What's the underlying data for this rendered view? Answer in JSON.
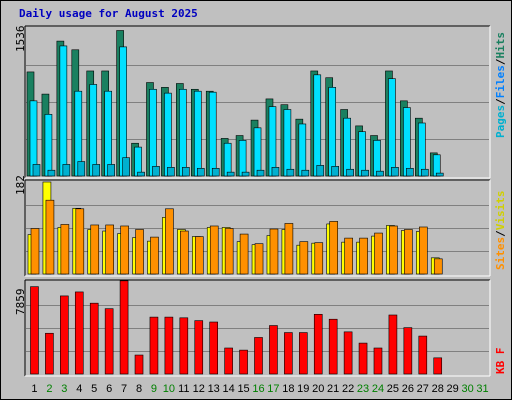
{
  "chart_data": {
    "type": "bar",
    "title": "Daily usage for August 2025",
    "days": [
      "1",
      "2",
      "3",
      "4",
      "5",
      "6",
      "7",
      "8",
      "9",
      "10",
      "11",
      "12",
      "13",
      "14",
      "15",
      "16",
      "17",
      "18",
      "19",
      "20",
      "21",
      "22",
      "23",
      "24",
      "25",
      "26",
      "27",
      "28",
      "29",
      "30",
      "31"
    ],
    "weekend_days": [
      "2",
      "3",
      "9",
      "10",
      "16",
      "17",
      "23",
      "24",
      "30",
      "31"
    ],
    "panels": [
      {
        "id": "hits-files-pages",
        "ymax_label": "1536",
        "ymax": 1536,
        "series": [
          {
            "name": "Hits",
            "color": "#1a8060",
            "values": [
              1080,
              850,
              1400,
              1310,
              1090,
              1090,
              1510,
              340,
              970,
              920,
              960,
              900,
              880,
              390,
              420,
              580,
              800,
              740,
              590,
              1090,
              1020,
              690,
              520,
              420,
              1090,
              780,
              600,
              240,
              0,
              0,
              0
            ]
          },
          {
            "name": "Files",
            "color": "#00e0ff",
            "values": [
              780,
              640,
              1350,
              880,
              950,
              880,
              1340,
              300,
              900,
              860,
              900,
              880,
              870,
              340,
              370,
              500,
              720,
              690,
              540,
              1050,
              920,
              600,
              460,
              370,
              1010,
              710,
              550,
              220,
              0,
              0,
              0
            ]
          },
          {
            "name": "Pages",
            "color": "#00b0d0",
            "values": [
              120,
              60,
              120,
              150,
              120,
              120,
              190,
              40,
              100,
              90,
              90,
              80,
              80,
              40,
              40,
              60,
              90,
              70,
              60,
              110,
              100,
              70,
              60,
              50,
              90,
              80,
              70,
              30,
              0,
              0,
              0
            ]
          }
        ],
        "legend_text": [
          "Pages",
          "/",
          "Files",
          "/",
          "Hits"
        ]
      },
      {
        "id": "visits-sites",
        "ymax_label": "182",
        "ymax": 182,
        "series": [
          {
            "name": "Visits",
            "color": "#ffff00",
            "values": [
              78,
              182,
              92,
              130,
              88,
              85,
              80,
              72,
              65,
              112,
              88,
              74,
              92,
              92,
              64,
              58,
              76,
              88,
              57,
              61,
              99,
              63,
              63,
              75,
              96,
              86,
              84,
              32,
              0,
              0,
              0
            ]
          },
          {
            "name": "Sites",
            "color": "#ff9000",
            "values": [
              90,
              146,
              98,
              129,
              97,
              97,
              95,
              88,
              73,
              129,
              85,
              74,
              95,
              90,
              79,
              60,
              89,
              100,
              64,
              62,
              104,
              71,
              71,
              81,
              95,
              88,
              93,
              30,
              0,
              0,
              0
            ]
          }
        ],
        "legend_text": [
          "Sites",
          "/",
          "Visits"
        ]
      },
      {
        "id": "kbytes",
        "ymax_label": "7859",
        "ymax": 7859,
        "series": [
          {
            "name": "KBytes",
            "color": "#ff0000",
            "values": [
              7460,
              3480,
              6670,
              7010,
              6050,
              5580,
              7960,
              1620,
              4860,
              4860,
              4800,
              4560,
              4440,
              2220,
              2040,
              3120,
              4140,
              3540,
              3540,
              5100,
              4680,
              3600,
              2640,
              2220,
              5040,
              3960,
              3240,
              1380,
              0,
              0,
              0
            ]
          }
        ],
        "legend_text": [
          "KB",
          "F"
        ]
      }
    ],
    "colors": {
      "weekday": "#000000",
      "weekend": "#008000",
      "frame": "#c0c0c0",
      "title": "#0000c0"
    }
  }
}
